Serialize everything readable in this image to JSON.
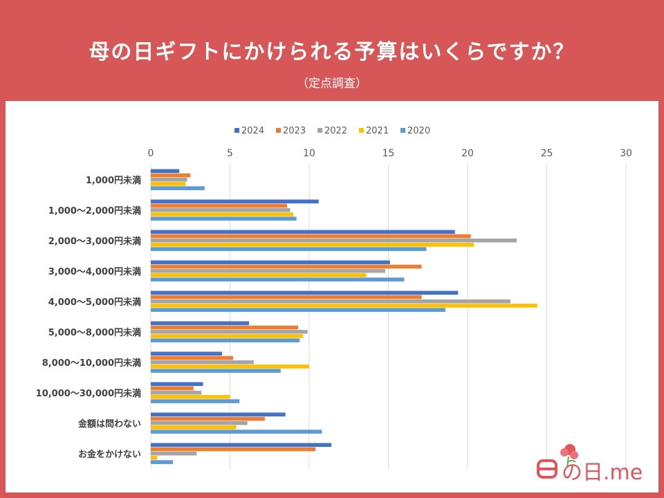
{
  "page": {
    "title": "母の日ギフトにかけられる予算はいくらですか？",
    "subtitle": "（定点調査）",
    "logo": "の日.me"
  },
  "colors": {
    "background": "#d75658",
    "panel": "#ffffff",
    "grid": "#d9d9d9",
    "label": "#404040"
  },
  "chart_data": {
    "type": "bar",
    "orientation": "horizontal",
    "title": "母の日ギフトにかけられる予算はいくらですか？",
    "subtitle": "（定点調査）",
    "xlim": [
      0,
      30
    ],
    "xticks": [
      0,
      5,
      10,
      15,
      20,
      25,
      30
    ],
    "grid": true,
    "legend_position": "top",
    "categories": [
      "1,000円未満",
      "1,000～2,000円未満",
      "2,000～3,000円未満",
      "3,000～4,000円未満",
      "4,000～5,000円未満",
      "5,000～8,000円未満",
      "8,000～10,000円未満",
      "10,000～30,000円未満",
      "金額は問わない",
      "お金をかけない"
    ],
    "series": [
      {
        "name": "2024",
        "color": "#4472c4",
        "values": [
          1.8,
          10.6,
          19.2,
          15.1,
          19.4,
          6.2,
          4.5,
          3.3,
          8.5,
          11.4
        ]
      },
      {
        "name": "2023",
        "color": "#ed7d31",
        "values": [
          2.5,
          8.6,
          20.2,
          17.1,
          17.1,
          9.3,
          5.2,
          2.7,
          7.2,
          10.4
        ]
      },
      {
        "name": "2022",
        "color": "#a5a5a5",
        "values": [
          2.3,
          8.8,
          23.1,
          14.8,
          22.7,
          9.9,
          6.5,
          3.2,
          6.1,
          2.9
        ]
      },
      {
        "name": "2021",
        "color": "#ffc000",
        "values": [
          2.2,
          9.0,
          20.4,
          13.6,
          24.4,
          9.6,
          10.0,
          5.0,
          5.4,
          0.4
        ]
      },
      {
        "name": "2020",
        "color": "#5b9bd5",
        "values": [
          3.4,
          9.2,
          17.4,
          16.0,
          18.6,
          9.4,
          8.2,
          5.6,
          10.8,
          1.4
        ]
      }
    ]
  }
}
